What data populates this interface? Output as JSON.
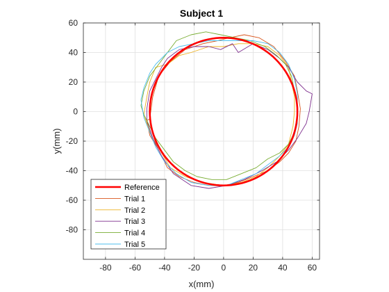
{
  "chart_data": {
    "type": "line",
    "title": "Subject 1",
    "xlabel": "x(mm)",
    "ylabel": "y(mm)",
    "xlim": [
      -95,
      65
    ],
    "ylim": [
      -100,
      60
    ],
    "xticks": [
      -80,
      -60,
      -40,
      -20,
      0,
      20,
      40,
      60
    ],
    "yticks": [
      -80,
      -60,
      -40,
      -20,
      0,
      20,
      40,
      60
    ],
    "grid": true,
    "legend_position": "bottom-left",
    "colors": {
      "reference": "#ff0000",
      "trial1": "#d95319",
      "trial2": "#edb120",
      "trial3": "#7e2f8e",
      "trial4": "#77ac30",
      "trial5": "#4dbeee"
    },
    "series": [
      {
        "name": "Reference",
        "key": "reference",
        "kind": "circle",
        "center": [
          0,
          0
        ],
        "radius": 50
      },
      {
        "name": "Trial 1",
        "key": "trial1",
        "points": [
          [
            -50,
            -5
          ],
          [
            -48,
            10
          ],
          [
            -44,
            24
          ],
          [
            -36,
            34
          ],
          [
            -26,
            42
          ],
          [
            -14,
            46
          ],
          [
            -4,
            48
          ],
          [
            4,
            50
          ],
          [
            14,
            52
          ],
          [
            24,
            50
          ],
          [
            34,
            44
          ],
          [
            42,
            34
          ],
          [
            48,
            24
          ],
          [
            50,
            14
          ],
          [
            52,
            2
          ],
          [
            51,
            -10
          ],
          [
            49,
            -20
          ],
          [
            44,
            -28
          ],
          [
            38,
            -34
          ],
          [
            30,
            -40
          ],
          [
            20,
            -44
          ],
          [
            10,
            -48
          ],
          [
            0,
            -50
          ],
          [
            -10,
            -50
          ],
          [
            -20,
            -48
          ],
          [
            -30,
            -44
          ],
          [
            -38,
            -38
          ],
          [
            -44,
            -26
          ],
          [
            -50,
            -16
          ],
          [
            -52,
            -6
          ],
          [
            -50,
            -5
          ]
        ]
      },
      {
        "name": "Trial 2",
        "key": "trial2",
        "points": [
          [
            -54,
            -2
          ],
          [
            -52,
            10
          ],
          [
            -50,
            20
          ],
          [
            -46,
            30
          ],
          [
            -38,
            32
          ],
          [
            -30,
            38
          ],
          [
            -22,
            40
          ],
          [
            -10,
            44
          ],
          [
            0,
            44
          ],
          [
            10,
            46
          ],
          [
            20,
            46
          ],
          [
            30,
            44
          ],
          [
            38,
            38
          ],
          [
            44,
            30
          ],
          [
            46,
            20
          ],
          [
            48,
            10
          ],
          [
            48,
            0
          ],
          [
            47,
            -10
          ],
          [
            44,
            -22
          ],
          [
            38,
            -30
          ],
          [
            30,
            -38
          ],
          [
            22,
            -44
          ],
          [
            12,
            -48
          ],
          [
            0,
            -50
          ],
          [
            -14,
            -48
          ],
          [
            -26,
            -44
          ],
          [
            -36,
            -38
          ],
          [
            -42,
            -28
          ],
          [
            -48,
            -18
          ],
          [
            -52,
            -8
          ],
          [
            -54,
            -2
          ]
        ]
      },
      {
        "name": "Trial 3",
        "key": "trial3",
        "points": [
          [
            -52,
            2
          ],
          [
            -50,
            14
          ],
          [
            -46,
            22
          ],
          [
            -42,
            30
          ],
          [
            -38,
            36
          ],
          [
            -30,
            42
          ],
          [
            -20,
            44
          ],
          [
            -10,
            44
          ],
          [
            -2,
            42
          ],
          [
            6,
            46
          ],
          [
            10,
            40
          ],
          [
            20,
            46
          ],
          [
            30,
            42
          ],
          [
            38,
            36
          ],
          [
            44,
            30
          ],
          [
            50,
            20
          ],
          [
            56,
            14
          ],
          [
            60,
            12
          ],
          [
            58,
            0
          ],
          [
            56,
            -8
          ],
          [
            50,
            -18
          ],
          [
            44,
            -26
          ],
          [
            36,
            -34
          ],
          [
            26,
            -40
          ],
          [
            14,
            -46
          ],
          [
            2,
            -50
          ],
          [
            -10,
            -52
          ],
          [
            -22,
            -50
          ],
          [
            -34,
            -42
          ],
          [
            -42,
            -30
          ],
          [
            -48,
            -18
          ],
          [
            -52,
            -6
          ],
          [
            -52,
            2
          ]
        ]
      },
      {
        "name": "Trial 4",
        "key": "trial4",
        "points": [
          [
            -56,
            4
          ],
          [
            -54,
            14
          ],
          [
            -50,
            24
          ],
          [
            -44,
            32
          ],
          [
            -38,
            40
          ],
          [
            -32,
            48
          ],
          [
            -22,
            52
          ],
          [
            -12,
            54
          ],
          [
            -2,
            52
          ],
          [
            8,
            50
          ],
          [
            18,
            48
          ],
          [
            28,
            44
          ],
          [
            36,
            38
          ],
          [
            42,
            32
          ],
          [
            46,
            24
          ],
          [
            48,
            14
          ],
          [
            50,
            4
          ],
          [
            50,
            -6
          ],
          [
            48,
            -14
          ],
          [
            44,
            -22
          ],
          [
            38,
            -28
          ],
          [
            30,
            -32
          ],
          [
            22,
            -38
          ],
          [
            12,
            -42
          ],
          [
            2,
            -46
          ],
          [
            -8,
            -46
          ],
          [
            -18,
            -44
          ],
          [
            -26,
            -40
          ],
          [
            -34,
            -34
          ],
          [
            -40,
            -26
          ],
          [
            -46,
            -18
          ],
          [
            -50,
            -10
          ],
          [
            -54,
            -2
          ],
          [
            -56,
            4
          ]
        ]
      },
      {
        "name": "Trial 5",
        "key": "trial5",
        "points": [
          [
            -56,
            8
          ],
          [
            -54,
            16
          ],
          [
            -50,
            26
          ],
          [
            -46,
            32
          ],
          [
            -38,
            40
          ],
          [
            -30,
            44
          ],
          [
            -20,
            46
          ],
          [
            -10,
            48
          ],
          [
            0,
            48
          ],
          [
            10,
            48
          ],
          [
            20,
            48
          ],
          [
            30,
            46
          ],
          [
            38,
            40
          ],
          [
            44,
            32
          ],
          [
            48,
            22
          ],
          [
            50,
            12
          ],
          [
            50,
            2
          ],
          [
            50,
            -8
          ],
          [
            48,
            -16
          ],
          [
            44,
            -24
          ],
          [
            38,
            -30
          ],
          [
            30,
            -36
          ],
          [
            22,
            -42
          ],
          [
            12,
            -46
          ],
          [
            2,
            -50
          ],
          [
            -10,
            -50
          ],
          [
            -22,
            -48
          ],
          [
            -32,
            -42
          ],
          [
            -40,
            -34
          ],
          [
            -46,
            -24
          ],
          [
            -50,
            -14
          ],
          [
            -54,
            -4
          ],
          [
            -56,
            8
          ]
        ]
      }
    ]
  }
}
